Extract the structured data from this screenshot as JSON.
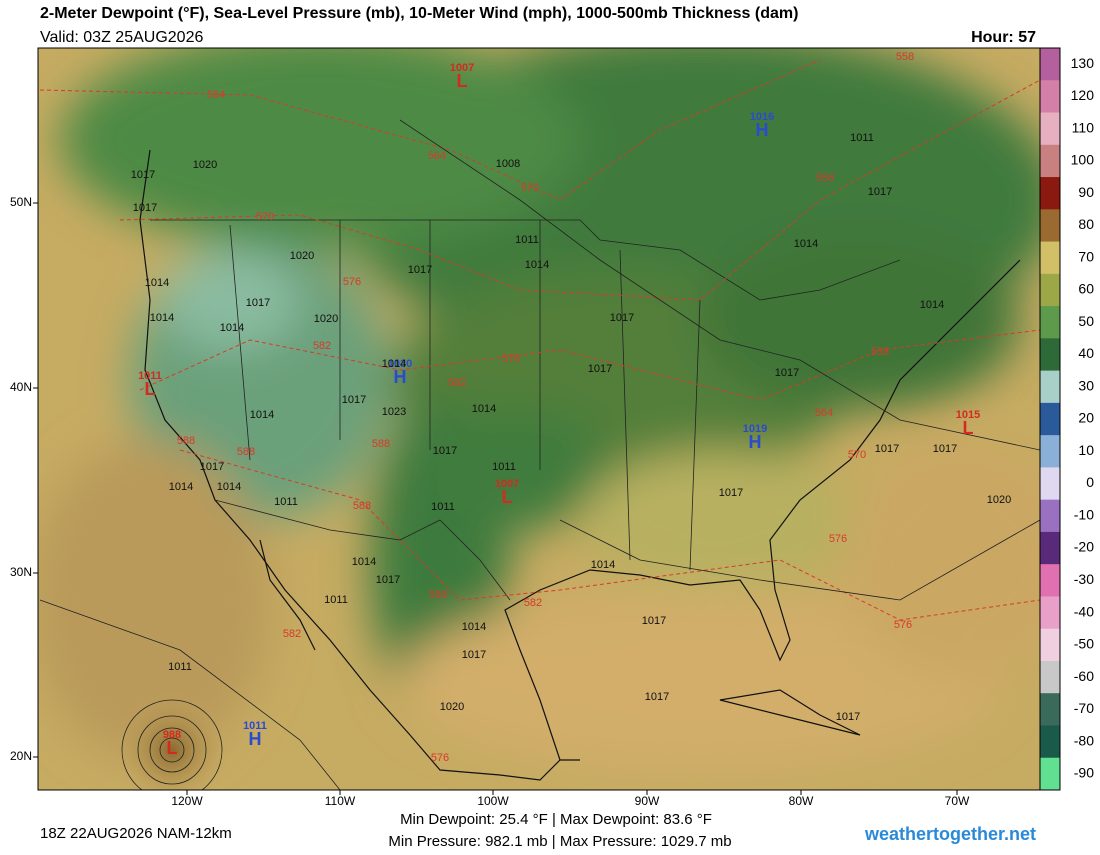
{
  "header": {
    "title": "2-Meter Dewpoint (°F), Sea-Level Pressure (mb), 10-Meter Wind (mph), 1000-500mb Thickness (dam)",
    "valid": "Valid: 03Z 25AUG2026",
    "hour": "Hour: 57"
  },
  "colorbar": {
    "ticks": [
      130,
      120,
      110,
      100,
      90,
      80,
      70,
      60,
      50,
      40,
      30,
      20,
      10,
      0,
      -10,
      -20,
      -30,
      -40,
      -50,
      -60,
      -70,
      -80,
      -90
    ],
    "colors": [
      "#b4609e",
      "#d47fa8",
      "#e6b0c0",
      "#c88080",
      "#8a1a10",
      "#9a6a30",
      "#d2c068",
      "#9ca848",
      "#5e9a4c",
      "#2e6a38",
      "#a8d0c8",
      "#2a5a9a",
      "#8ab0d8",
      "#e0d8f0",
      "#9a70c0",
      "#5a2a7a",
      "#e070b0",
      "#e8a0c8",
      "#f0d0e0",
      "#c8c8c8",
      "#3a6a5a",
      "#1a5a4a",
      "#60e090"
    ]
  },
  "axes": {
    "lat_labels": [
      "50N",
      "40N",
      "30N",
      "20N"
    ],
    "lon_labels": [
      "120W",
      "110W",
      "100W",
      "90W",
      "80W",
      "70W"
    ]
  },
  "pressure_centers": [
    {
      "type": "L",
      "value": "1007"
    },
    {
      "type": "H",
      "value": "1016"
    },
    {
      "type": "H",
      "value": "1030"
    },
    {
      "type": "H",
      "value": "1019"
    },
    {
      "type": "L",
      "value": "1015"
    },
    {
      "type": "L",
      "value": "1007"
    },
    {
      "type": "H",
      "value": "1011"
    },
    {
      "type": "L",
      "value": "988"
    },
    {
      "type": "L",
      "value": "1011"
    }
  ],
  "isobar_labels": [
    "1017",
    "1020",
    "1017",
    "1020",
    "1014",
    "1017",
    "1014",
    "1014",
    "1020",
    "1017",
    "1011",
    "1014",
    "1017",
    "1017",
    "1014",
    "1017",
    "1011",
    "1014",
    "1017",
    "1023",
    "1017",
    "1014",
    "1014",
    "1011",
    "1011",
    "1014",
    "1017",
    "1011",
    "1014",
    "1017",
    "1014",
    "1017",
    "1020",
    "1011",
    "1017",
    "1017",
    "1017",
    "1017",
    "1017",
    "1017",
    "1020",
    "1014",
    "1011",
    "1017",
    "1014",
    "1008",
    "1014"
  ],
  "thickness_labels": [
    "564",
    "564",
    "570",
    "570",
    "576",
    "582",
    "582",
    "576",
    "588",
    "588",
    "588",
    "588",
    "588",
    "582",
    "582",
    "576",
    "558",
    "558",
    "558",
    "564",
    "570",
    "576",
    "576"
  ],
  "footer": {
    "run": "18Z 22AUG2026 NAM-12km",
    "dewpoint_stats": "Min Dewpoint: 25.4 °F | Max Dewpoint: 83.6 °F",
    "pressure_stats": "Min Pressure: 982.1 mb | Max Pressure: 1029.7 mb",
    "site": "weathertogether.net"
  }
}
